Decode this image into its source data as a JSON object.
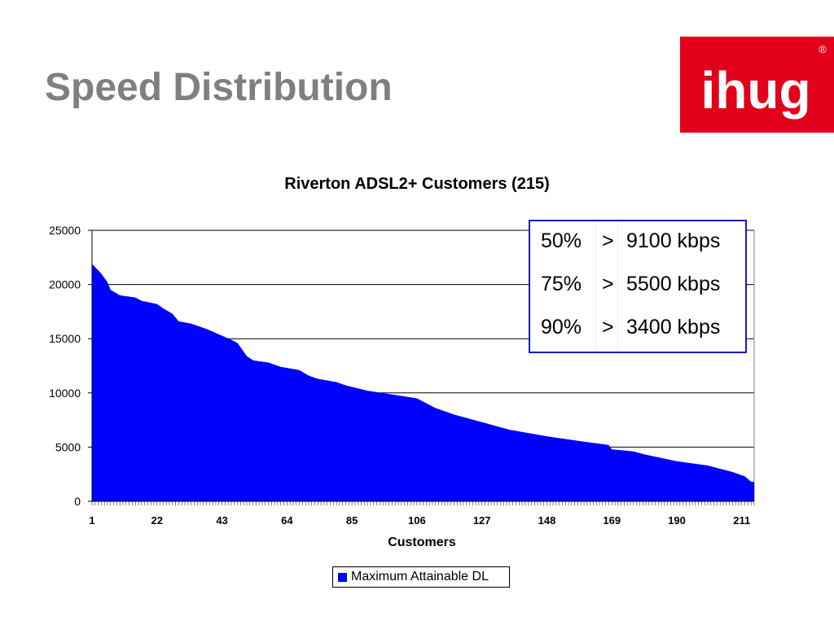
{
  "slide": {
    "title": "Speed Distribution"
  },
  "logo": {
    "text": "ihug",
    "registered": "®",
    "bg_color": "#e2001a"
  },
  "chart_data": {
    "type": "area",
    "title": "Riverton ADSL2+ Customers (215)",
    "xlabel": "Customers",
    "ylabel": "",
    "n_points": 215,
    "xlim": [
      1,
      215
    ],
    "ylim": [
      0,
      25000
    ],
    "y_ticks": [
      0,
      5000,
      10000,
      15000,
      20000,
      25000
    ],
    "x_tick_labels": [
      "1",
      "22",
      "43",
      "64",
      "85",
      "106",
      "127",
      "148",
      "169",
      "190",
      "211"
    ],
    "grid": true,
    "legend_position": "bottom",
    "series": [
      {
        "name": "Maximum Attainable DL",
        "color": "#0000ff",
        "curve_keypoints": [
          {
            "x": 1,
            "y": 21900
          },
          {
            "x": 4,
            "y": 21000
          },
          {
            "x": 6,
            "y": 20200
          },
          {
            "x": 7,
            "y": 19500
          },
          {
            "x": 10,
            "y": 19000
          },
          {
            "x": 15,
            "y": 18800
          },
          {
            "x": 17,
            "y": 18500
          },
          {
            "x": 22,
            "y": 18200
          },
          {
            "x": 24,
            "y": 17800
          },
          {
            "x": 27,
            "y": 17300
          },
          {
            "x": 29,
            "y": 16600
          },
          {
            "x": 33,
            "y": 16400
          },
          {
            "x": 38,
            "y": 15900
          },
          {
            "x": 42,
            "y": 15400
          },
          {
            "x": 46,
            "y": 14900
          },
          {
            "x": 48,
            "y": 14600
          },
          {
            "x": 51,
            "y": 13400
          },
          {
            "x": 53,
            "y": 13000
          },
          {
            "x": 58,
            "y": 12800
          },
          {
            "x": 62,
            "y": 12400
          },
          {
            "x": 68,
            "y": 12100
          },
          {
            "x": 71,
            "y": 11600
          },
          {
            "x": 74,
            "y": 11300
          },
          {
            "x": 80,
            "y": 11000
          },
          {
            "x": 83,
            "y": 10700
          },
          {
            "x": 90,
            "y": 10200
          },
          {
            "x": 97,
            "y": 9900
          },
          {
            "x": 106,
            "y": 9500
          },
          {
            "x": 112,
            "y": 8600
          },
          {
            "x": 118,
            "y": 8000
          },
          {
            "x": 127,
            "y": 7300
          },
          {
            "x": 136,
            "y": 6600
          },
          {
            "x": 148,
            "y": 6000
          },
          {
            "x": 160,
            "y": 5500
          },
          {
            "x": 168,
            "y": 5200
          },
          {
            "x": 169,
            "y": 4800
          },
          {
            "x": 176,
            "y": 4600
          },
          {
            "x": 180,
            "y": 4300
          },
          {
            "x": 190,
            "y": 3700
          },
          {
            "x": 200,
            "y": 3300
          },
          {
            "x": 204,
            "y": 3000
          },
          {
            "x": 208,
            "y": 2700
          },
          {
            "x": 212,
            "y": 2300
          },
          {
            "x": 214,
            "y": 1800
          },
          {
            "x": 215,
            "y": 1800
          }
        ]
      }
    ]
  },
  "stats": [
    {
      "pct": "50%",
      "op": ">",
      "value": "9100 kbps"
    },
    {
      "pct": "75%",
      "op": ">",
      "value": "5500 kbps"
    },
    {
      "pct": "90%",
      "op": ">",
      "value": "3400 kbps"
    }
  ]
}
